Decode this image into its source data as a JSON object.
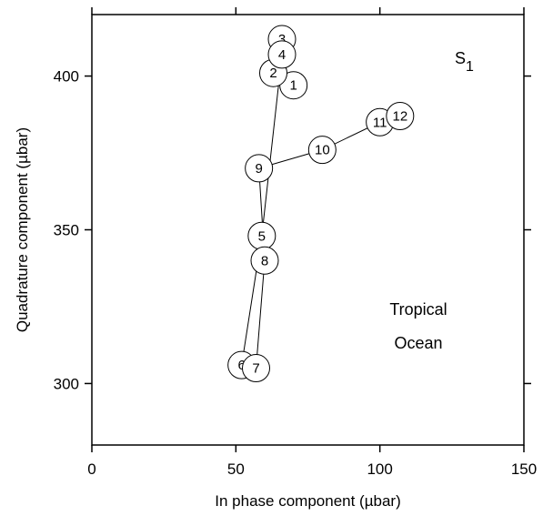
{
  "chart_data": {
    "type": "scatter",
    "xlabel": "In phase component (µbar)",
    "ylabel": "Quadrature component (µbar)",
    "xlim": [
      0,
      150
    ],
    "ylim": [
      280,
      420
    ],
    "xticks": [
      0,
      50,
      100,
      150
    ],
    "yticks": [
      300,
      350,
      400
    ],
    "x_tick_labels": [
      "0",
      "50",
      "100",
      "150"
    ],
    "y_tick_labels": [
      "300",
      "350",
      "400"
    ],
    "grid": false,
    "title_main": "S",
    "title_sub": "1",
    "annotations": [
      "Tropical",
      "Ocean"
    ],
    "points": [
      {
        "label": "1",
        "x": 70,
        "y": 397
      },
      {
        "label": "2",
        "x": 63,
        "y": 401
      },
      {
        "label": "3",
        "x": 66,
        "y": 412
      },
      {
        "label": "4",
        "x": 66,
        "y": 407
      },
      {
        "label": "5",
        "x": 59,
        "y": 348
      },
      {
        "label": "6",
        "x": 52,
        "y": 306
      },
      {
        "label": "7",
        "x": 57,
        "y": 305
      },
      {
        "label": "8",
        "x": 60,
        "y": 340
      },
      {
        "label": "9",
        "x": 58,
        "y": 370
      },
      {
        "label": "10",
        "x": 80,
        "y": 376
      },
      {
        "label": "11",
        "x": 100,
        "y": 385
      },
      {
        "label": "12",
        "x": 107,
        "y": 387
      }
    ],
    "line_order": [
      "1",
      "2",
      "3",
      "4",
      "5",
      "6",
      "7",
      "8",
      "9",
      "10",
      "11",
      "12"
    ]
  }
}
